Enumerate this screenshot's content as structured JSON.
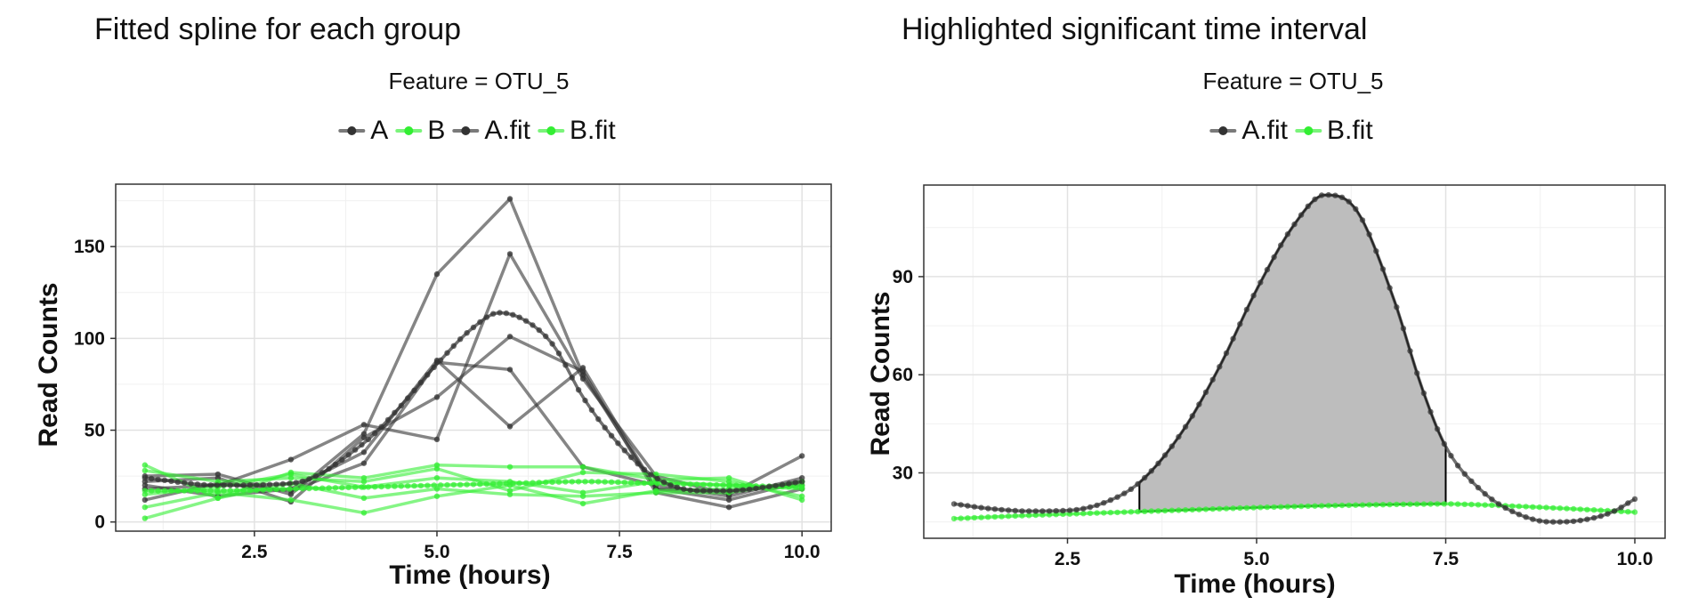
{
  "colors": {
    "A": "#333333",
    "B": "#33ee33",
    "ribbon": "#bdbdbd"
  },
  "chart_data": [
    {
      "type": "line",
      "title": "Fitted spline for each group",
      "subtitle": "Feature = OTU_5",
      "xlabel": "Time (hours)",
      "ylabel": "Read Counts",
      "xlim": [
        0.6,
        10.4
      ],
      "ylim": [
        -5,
        184
      ],
      "xticks": [
        2.5,
        5.0,
        7.5,
        10.0
      ],
      "xtick_labels": [
        "2.5",
        "5.0",
        "7.5",
        "10.0"
      ],
      "yticks": [
        0,
        50,
        100,
        150
      ],
      "ytick_labels": [
        "0",
        "50",
        "100",
        "150"
      ],
      "grid": true,
      "legend": [
        {
          "label": "A",
          "group": "A"
        },
        {
          "label": "B",
          "group": "B"
        },
        {
          "label": "A.fit",
          "group": "A"
        },
        {
          "label": "B.fit",
          "group": "B"
        }
      ],
      "x": [
        1,
        2,
        3,
        4,
        5,
        6,
        7,
        8,
        9,
        10
      ],
      "series": [
        {
          "group": "A",
          "values": [
            25,
            26,
            15,
            48,
            135,
            176,
            80,
            18,
            12,
            22
          ]
        },
        {
          "group": "A",
          "values": [
            18,
            20,
            34,
            53,
            45,
            146,
            78,
            25,
            15,
            36
          ]
        },
        {
          "group": "A",
          "values": [
            22,
            24,
            11,
            46,
            68,
            101,
            82,
            16,
            8,
            18
          ]
        },
        {
          "group": "A",
          "values": [
            12,
            21,
            17,
            32,
            87,
            83,
            30,
            20,
            14,
            24
          ]
        },
        {
          "group": "A",
          "values": [
            20,
            14,
            18,
            38,
            88,
            52,
            84,
            18,
            17,
            20
          ]
        },
        {
          "group": "B",
          "values": [
            31,
            13,
            27,
            24,
            31,
            30,
            30,
            23,
            24,
            12
          ]
        },
        {
          "group": "B",
          "values": [
            2,
            13,
            21,
            13,
            18,
            15,
            14,
            16,
            16,
            22
          ]
        },
        {
          "group": "B",
          "values": [
            8,
            16,
            12,
            5,
            14,
            20,
            10,
            17,
            18,
            20
          ]
        },
        {
          "group": "B",
          "values": [
            28,
            22,
            24,
            22,
            29,
            17,
            27,
            26,
            22,
            14
          ]
        },
        {
          "group": "B",
          "values": [
            15,
            19,
            26,
            19,
            24,
            22,
            16,
            22,
            20,
            18
          ]
        }
      ],
      "fits": [
        {
          "name": "A.fit",
          "group": "A",
          "x": [
            1,
            2,
            3,
            4,
            4.5,
            5,
            5.5,
            5.85,
            6.2,
            6.6,
            7,
            7.5,
            8,
            8.6,
            9,
            9.5,
            10
          ],
          "values": [
            24,
            20,
            21,
            43,
            63,
            86,
            106,
            114,
            110,
            96,
            68,
            42,
            24,
            17,
            17,
            19,
            22
          ]
        },
        {
          "name": "B.fit",
          "group": "B",
          "x": [
            1,
            2,
            3,
            4,
            5,
            6,
            7,
            8,
            9,
            10
          ],
          "values": [
            17,
            17,
            18,
            19,
            20,
            21,
            22,
            21,
            20,
            19
          ]
        }
      ]
    },
    {
      "type": "line",
      "title": "Highlighted significant time interval",
      "subtitle": "Feature = OTU_5",
      "xlabel": "Time (hours)",
      "ylabel": "Read Counts",
      "xlim": [
        0.6,
        10.4
      ],
      "ylim": [
        10,
        118
      ],
      "xticks": [
        2.5,
        5.0,
        7.5,
        10.0
      ],
      "xtick_labels": [
        "2.5",
        "5.0",
        "7.5",
        "10.0"
      ],
      "yticks": [
        30,
        60,
        90
      ],
      "ytick_labels": [
        "30",
        "60",
        "90"
      ],
      "grid": true,
      "legend": [
        {
          "label": "A.fit",
          "group": "A"
        },
        {
          "label": "B.fit",
          "group": "B"
        }
      ],
      "highlight_interval": [
        3.45,
        7.5
      ],
      "fits": [
        {
          "name": "A.fit",
          "group": "A",
          "x": [
            1,
            1.5,
            2,
            2.5,
            3,
            3.45,
            4,
            4.5,
            5,
            5.5,
            5.9,
            6.3,
            6.8,
            7.2,
            7.5,
            8,
            8.5,
            8.9,
            9.3,
            9.7,
            10
          ],
          "values": [
            20.5,
            19,
            18.3,
            18.5,
            21,
            27,
            42,
            62,
            86,
            106,
            115,
            111,
            84,
            55,
            38,
            24,
            17,
            15,
            15.5,
            18,
            22
          ]
        },
        {
          "name": "B.fit",
          "group": "B",
          "x": [
            1,
            2,
            3,
            4,
            5,
            6,
            7,
            7.5,
            8,
            9,
            10
          ],
          "values": [
            16,
            17,
            17.8,
            18.6,
            19.4,
            20,
            20.4,
            20.5,
            20.2,
            19.2,
            18
          ]
        }
      ]
    }
  ]
}
